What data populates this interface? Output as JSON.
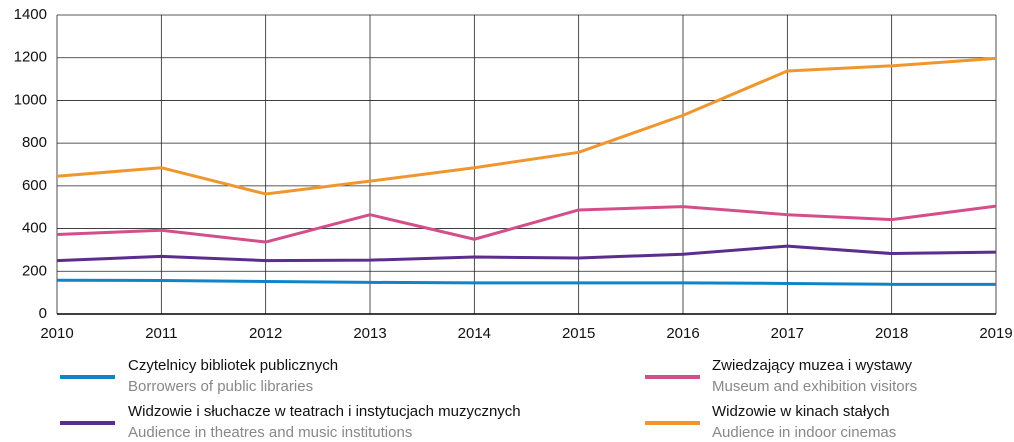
{
  "chart_data": {
    "type": "line",
    "x": [
      2010,
      2011,
      2012,
      2013,
      2014,
      2015,
      2016,
      2017,
      2018,
      2019
    ],
    "xlim": [
      2010,
      2019
    ],
    "xticks": [
      2010,
      2011,
      2012,
      2013,
      2014,
      2015,
      2016,
      2017,
      2018,
      2019
    ],
    "ylim": [
      0,
      1400
    ],
    "yticks": [
      0,
      200,
      400,
      600,
      800,
      1000,
      1200,
      1400
    ],
    "grid": true,
    "series": [
      {
        "name": "Czytelnicy bibliotek publicznych",
        "subtitle": "Borrowers of public libraries",
        "color": "#0f84c8",
        "values": [
          158,
          157,
          152,
          148,
          146,
          146,
          146,
          143,
          139,
          139
        ]
      },
      {
        "name": "Widzowie i słuchacze w teatrach i instytucjach muzycznych",
        "subtitle": "Audience in theatres and music institutions",
        "color": "#5b2d8e",
        "values": [
          250,
          270,
          250,
          252,
          267,
          262,
          280,
          318,
          283,
          290
        ]
      },
      {
        "name": "Zwiedzający muzea i wystawy",
        "subtitle": "Museum and exhibition visitors",
        "color": "#d44f8a",
        "values": [
          372,
          392,
          337,
          465,
          350,
          487,
          503,
          465,
          442,
          505
        ]
      },
      {
        "name": "Widzowie w kinach stałych",
        "subtitle": "Audience in indoor cinemas",
        "color": "#f0962e",
        "values": [
          645,
          685,
          562,
          622,
          685,
          757,
          930,
          1138,
          1162,
          1197
        ]
      }
    ]
  }
}
